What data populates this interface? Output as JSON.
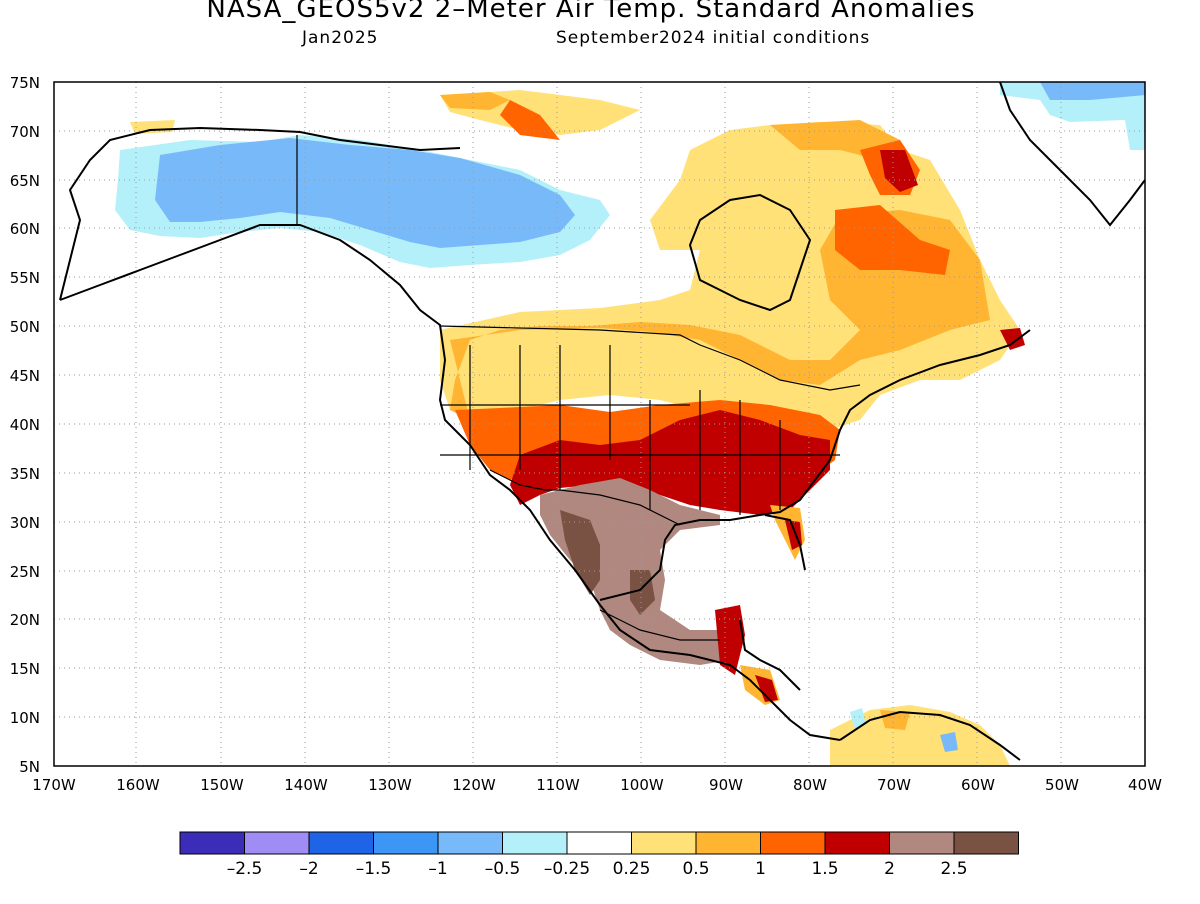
{
  "title": "NASA_GEOS5v2 2–Meter Air Temp. Standard Anomalies",
  "subtitle_left": "Jan2025",
  "subtitle_right": "September2024 initial conditions",
  "map": {
    "lon_labels": [
      "170W",
      "160W",
      "150W",
      "140W",
      "130W",
      "120W",
      "110W",
      "100W",
      "90W",
      "80W",
      "70W",
      "60W",
      "50W",
      "40W"
    ],
    "lat_labels": [
      "75N",
      "70N",
      "65N",
      "60N",
      "55N",
      "50N",
      "45N",
      "40N",
      "35N",
      "30N",
      "25N",
      "20N",
      "15N",
      "10N",
      "5N"
    ],
    "grid": "dotted"
  },
  "colorbar": {
    "colors": [
      "#3c2db8",
      "#a08cf5",
      "#1f64e6",
      "#3c96f5",
      "#78b9fa",
      "#b4f0fa",
      "#ffffff",
      "#ffe178",
      "#ffb432",
      "#ff6400",
      "#c00000",
      "#b0887f",
      "#7a5244"
    ],
    "labels": [
      "–2.5",
      "–2",
      "–1.5",
      "–1",
      "–0.5",
      "–0.25",
      "0.25",
      "0.5",
      "1",
      "1.5",
      "2",
      "2.5"
    ]
  }
}
